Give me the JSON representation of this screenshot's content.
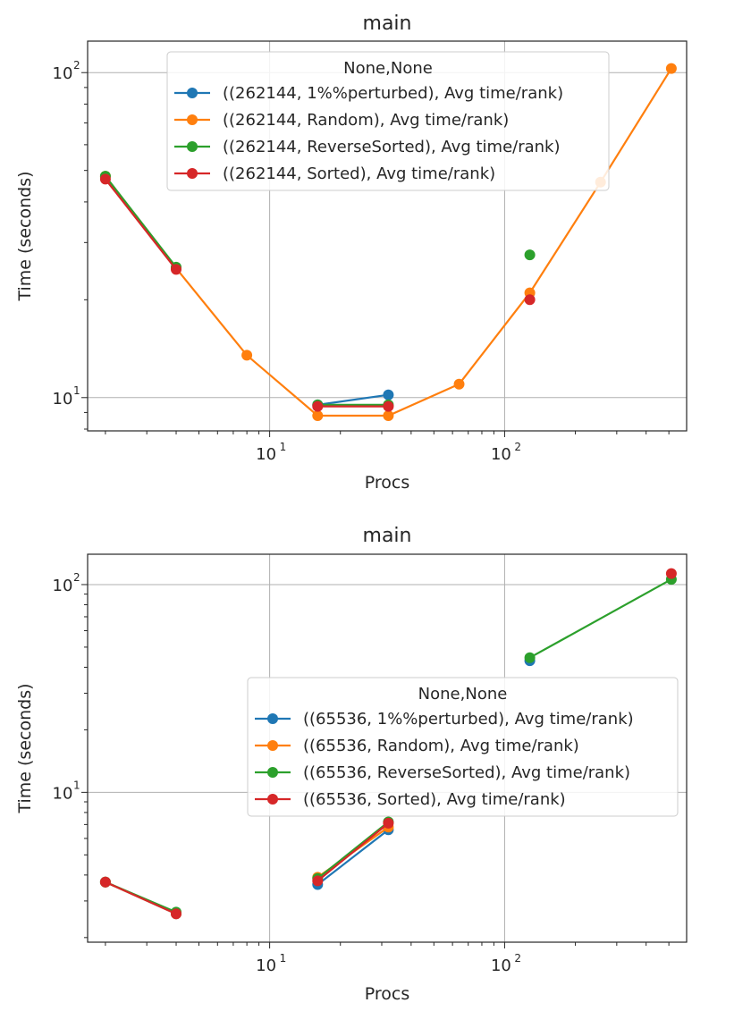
{
  "chart_data": [
    {
      "type": "line",
      "title": "main",
      "xlabel": "Procs",
      "ylabel": "Time (seconds)",
      "xscale": "log",
      "yscale": "log",
      "xlim": [
        1.68,
        595
      ],
      "ylim": [
        7.9,
        125
      ],
      "grid": true,
      "legend": {
        "title": "None,None",
        "placement": "upper-center"
      },
      "series": [
        {
          "name": "((262144, 1%%perturbed), Avg time/rank)",
          "color": "#1f77b4",
          "segments": [
            {
              "x": [
                16,
                32
              ],
              "y": [
                9.5,
                10.2
              ]
            }
          ]
        },
        {
          "name": "((262144, Random), Avg time/rank)",
          "color": "#ff7f0e",
          "segments": [
            {
              "x": [
                2,
                4,
                8,
                16,
                32,
                64,
                128,
                256,
                512
              ],
              "y": [
                48,
                25,
                13.5,
                8.8,
                8.8,
                11,
                21,
                46,
                103
              ]
            }
          ]
        },
        {
          "name": "((262144, ReverseSorted), Avg time/rank)",
          "color": "#2ca02c",
          "segments": [
            {
              "x": [
                2,
                4
              ],
              "y": [
                48,
                25.2
              ]
            },
            {
              "x": [
                16,
                32
              ],
              "y": [
                9.5,
                9.5
              ]
            },
            {
              "x": [
                128
              ],
              "y": [
                27.5
              ]
            }
          ]
        },
        {
          "name": "((262144, Sorted), Avg time/rank)",
          "color": "#d62728",
          "segments": [
            {
              "x": [
                2,
                4
              ],
              "y": [
                47,
                24.8
              ]
            },
            {
              "x": [
                16,
                32
              ],
              "y": [
                9.4,
                9.4
              ]
            },
            {
              "x": [
                128
              ],
              "y": [
                20
              ]
            }
          ]
        }
      ]
    },
    {
      "type": "line",
      "title": "main",
      "xlabel": "Procs",
      "ylabel": "Time (seconds)",
      "xscale": "log",
      "yscale": "log",
      "xlim": [
        1.68,
        595
      ],
      "ylim": [
        1.9,
        140
      ],
      "grid": true,
      "legend": {
        "title": "None,None",
        "placement": "center-right"
      },
      "series": [
        {
          "name": "((65536, 1%%perturbed), Avg time/rank)",
          "color": "#1f77b4",
          "segments": [
            {
              "x": [
                2,
                4
              ],
              "y": [
                3.7,
                2.6
              ]
            },
            {
              "x": [
                16,
                32
              ],
              "y": [
                3.6,
                6.6
              ]
            },
            {
              "x": [
                128
              ],
              "y": [
                43
              ]
            }
          ]
        },
        {
          "name": "((65536, Random), Avg time/rank)",
          "color": "#ff7f0e",
          "segments": [
            {
              "x": [
                2,
                4
              ],
              "y": [
                3.7,
                2.6
              ]
            },
            {
              "x": [
                16,
                32
              ],
              "y": [
                3.9,
                6.8
              ]
            }
          ]
        },
        {
          "name": "((65536, ReverseSorted), Avg time/rank)",
          "color": "#2ca02c",
          "segments": [
            {
              "x": [
                2,
                4
              ],
              "y": [
                3.7,
                2.65
              ]
            },
            {
              "x": [
                16,
                32
              ],
              "y": [
                3.85,
                7.2
              ]
            },
            {
              "x": [
                128,
                512
              ],
              "y": [
                44.5,
                106
              ]
            }
          ]
        },
        {
          "name": "((65536, Sorted), Avg time/rank)",
          "color": "#d62728",
          "segments": [
            {
              "x": [
                2,
                4
              ],
              "y": [
                3.7,
                2.6
              ]
            },
            {
              "x": [
                16,
                32
              ],
              "y": [
                3.75,
                7.1
              ]
            },
            {
              "x": [
                512
              ],
              "y": [
                113
              ]
            }
          ]
        }
      ]
    }
  ]
}
